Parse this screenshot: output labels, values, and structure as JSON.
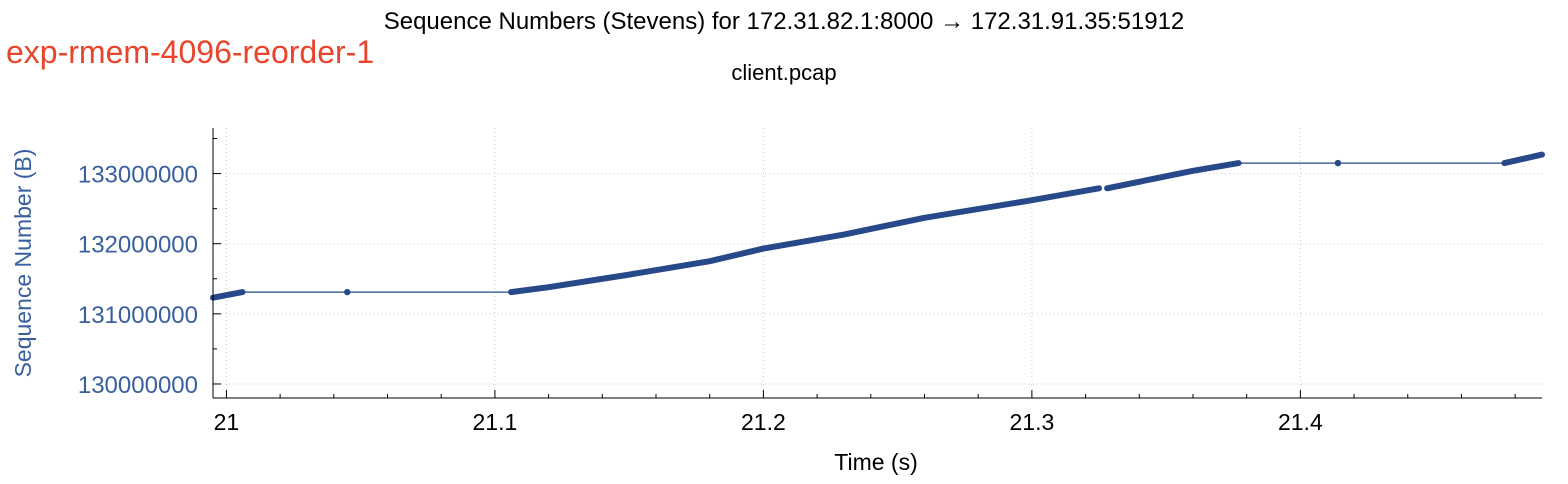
{
  "window": {
    "experiment_label": "exp-rmem-4096-reorder-1",
    "accent_color": "#e8452c"
  },
  "chart_data": {
    "type": "line",
    "title": "Sequence Numbers (Stevens) for 172.31.82.1:8000 → 172.31.91.35:51912",
    "subtitle": "client.pcap",
    "xlabel": "Time (s)",
    "ylabel": "Sequence Number (B)",
    "xlim": [
      20.995,
      21.49
    ],
    "ylim": [
      129800000,
      133650000
    ],
    "xticks": [
      21,
      21.1,
      21.2,
      21.3,
      21.4
    ],
    "xtick_labels": [
      "21",
      "21.1",
      "21.2",
      "21.3",
      "21.4"
    ],
    "yticks": [
      130000000,
      131000000,
      132000000,
      133000000
    ],
    "ytick_labels": [
      "130000000",
      "131000000",
      "132000000",
      "133000000"
    ],
    "grid": true,
    "series_color": "#27498a",
    "ylabel_color": "#3a5f9e",
    "series": [
      {
        "segments": [
          {
            "style": "thick",
            "points": [
              [
                20.995,
                131230000
              ],
              [
                21.006,
                131310000
              ]
            ]
          },
          {
            "style": "thin",
            "points": [
              [
                21.006,
                131310000
              ],
              [
                21.045,
                131310000
              ],
              [
                21.106,
                131310000
              ]
            ]
          },
          {
            "style": "thick",
            "points": [
              [
                21.106,
                131310000
              ],
              [
                21.12,
                131380000
              ],
              [
                21.15,
                131560000
              ],
              [
                21.18,
                131750000
              ],
              [
                21.2,
                131930000
              ],
              [
                21.23,
                132130000
              ],
              [
                21.26,
                132370000
              ],
              [
                21.3,
                132620000
              ],
              [
                21.325,
                132790000
              ]
            ]
          },
          {
            "style": "thick",
            "points": [
              [
                21.328,
                132790000
              ],
              [
                21.36,
                133040000
              ],
              [
                21.377,
                133150000
              ]
            ]
          },
          {
            "style": "thin",
            "points": [
              [
                21.377,
                133150000
              ],
              [
                21.414,
                133150000
              ],
              [
                21.476,
                133150000
              ]
            ]
          },
          {
            "style": "thick",
            "points": [
              [
                21.476,
                133150000
              ],
              [
                21.49,
                133270000
              ]
            ]
          }
        ],
        "markers": [
          [
            21.045,
            131310000
          ],
          [
            21.414,
            133150000
          ]
        ]
      }
    ]
  }
}
